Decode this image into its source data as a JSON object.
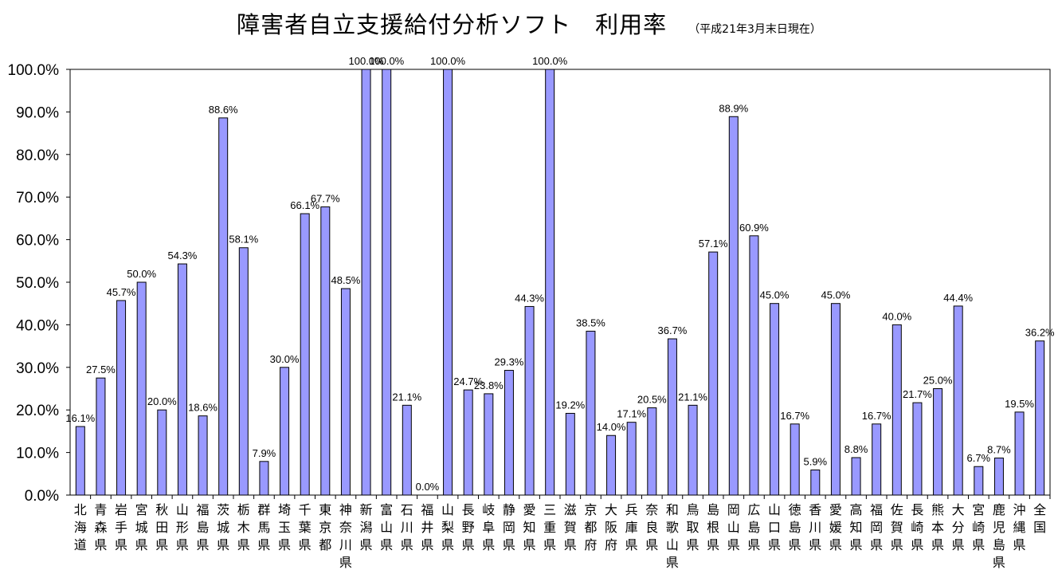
{
  "chart_data": {
    "type": "bar",
    "title": "障害者自立支援給付分析ソフト　利用率",
    "subtitle": "（平成21年3月末日現在）",
    "ylim": [
      0,
      100
    ],
    "y_ticks": [
      "0.0%",
      "10.0%",
      "20.0%",
      "30.0%",
      "40.0%",
      "50.0%",
      "60.0%",
      "70.0%",
      "80.0%",
      "90.0%",
      "100.0%"
    ],
    "grid": false,
    "legend": "none",
    "bar_color": "#9999ff",
    "bar_stroke": "#000000",
    "categories": [
      "北海道",
      "青森県",
      "岩手県",
      "宮城県",
      "秋田県",
      "山形県",
      "福島県",
      "茨城県",
      "栃木県",
      "群馬県",
      "埼玉県",
      "千葉県",
      "東京都",
      "神奈川県",
      "新潟県",
      "富山県",
      "石川県",
      "福井県",
      "山梨県",
      "長野県",
      "岐阜県",
      "静岡県",
      "愛知県",
      "三重県",
      "滋賀県",
      "京都府",
      "大阪府",
      "兵庫県",
      "奈良県",
      "和歌山県",
      "鳥取県",
      "島根県",
      "岡山県",
      "広島県",
      "山口県",
      "徳島県",
      "香川県",
      "愛媛県",
      "高知県",
      "福岡県",
      "佐賀県",
      "長崎県",
      "熊本県",
      "大分県",
      "宮崎県",
      "鹿児島県",
      "沖縄県",
      "全国"
    ],
    "values": [
      16.1,
      27.5,
      45.7,
      50.0,
      20.0,
      54.3,
      18.6,
      88.6,
      58.1,
      7.9,
      30.0,
      66.1,
      67.7,
      48.5,
      100.0,
      100.0,
      21.1,
      0.0,
      100.0,
      24.7,
      23.8,
      29.3,
      44.3,
      100.0,
      19.2,
      38.5,
      14.0,
      17.1,
      20.5,
      36.7,
      21.1,
      57.1,
      88.9,
      60.9,
      45.0,
      16.7,
      5.9,
      45.0,
      8.8,
      16.7,
      40.0,
      21.7,
      25.0,
      44.4,
      6.7,
      8.7,
      19.5,
      36.2
    ],
    "data_labels": [
      "16.1%",
      "27.5%",
      "45.7%",
      "50.0%",
      "20.0%",
      "54.3%",
      "18.6%",
      "88.6%",
      "58.1%",
      "7.9%",
      "30.0%",
      "66.1%",
      "67.7%",
      "48.5%",
      "100.0%",
      "100.0%",
      "21.1%",
      "0.0%",
      "100.0%",
      "24.7%",
      "23.8%",
      "29.3%",
      "44.3%",
      "100.0%",
      "19.2%",
      "38.5%",
      "14.0%",
      "17.1%",
      "20.5%",
      "36.7%",
      "21.1%",
      "57.1%",
      "88.9%",
      "60.9%",
      "45.0%",
      "16.7%",
      "5.9%",
      "45.0%",
      "8.8%",
      "16.7%",
      "40.0%",
      "21.7%",
      "25.0%",
      "44.4%",
      "6.7%",
      "8.7%",
      "19.5%",
      "36.2%"
    ]
  }
}
